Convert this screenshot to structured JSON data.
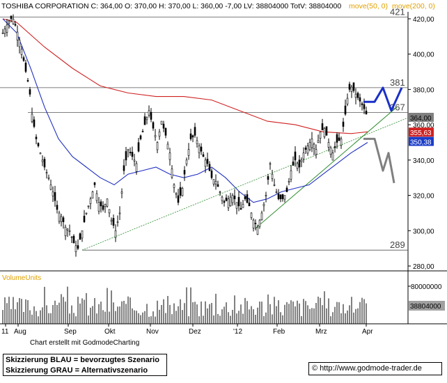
{
  "header": {
    "ticker_info": "TOSHIBA CORPORATION C: 364,00 O: 370,00 H: 370,00 L: 360,00 -7,00 LV: 38804000 TotV: 38804000",
    "ma50_label": "move(50, 0)",
    "ma200_label": "move(200, 0)"
  },
  "footer": {
    "credit": "Chart erstellt mit GodmodeCharting",
    "caption_blue": "Skizzierung BLAU = bevorzugtes Szenario",
    "caption_grey": "Skizzierung GRAU = Alternativszenario",
    "copyright_symbol": "©",
    "url": "http://www.godmode-trader.de"
  },
  "colors": {
    "ma50": "#2030c0",
    "ma200": "#d02020",
    "blue_scenario": "#1a30c8",
    "grey_scenario": "#808080",
    "trendline": "#2a8a2a",
    "price": "#000000",
    "last_price_badge": "#808080",
    "ma200_badge": "#d02020",
    "ma50_badge": "#1a3cc8"
  },
  "chart_data": {
    "type": "candlestick",
    "price_axis": {
      "ylim": [
        275,
        425
      ],
      "ticks": [
        "280,00",
        "300,00",
        "320,00",
        "340,00",
        "360,00",
        "380,00",
        "400,00",
        "420,00"
      ]
    },
    "x_axis": {
      "labels": [
        "11",
        "Aug",
        "Sep",
        "Okt",
        "Nov",
        "Dez",
        "'12",
        "Feb",
        "Mrz",
        "Apr"
      ]
    },
    "level_labels": [
      "421",
      "381",
      "367",
      "289"
    ],
    "levels": [
      421,
      381,
      367,
      289
    ],
    "badges": {
      "last": "364,00",
      "ma200": "355,63",
      "ma50": "350,38"
    },
    "volume": {
      "label": "VolumeUnits",
      "tick": "80000000",
      "last": "38804000"
    },
    "price_path": [
      [
        0,
        412
      ],
      [
        8,
        418
      ],
      [
        14,
        421
      ],
      [
        20,
        414
      ],
      [
        26,
        405
      ],
      [
        32,
        392
      ],
      [
        38,
        381
      ],
      [
        42,
        366
      ],
      [
        48,
        352
      ],
      [
        54,
        344
      ],
      [
        60,
        336
      ],
      [
        66,
        330
      ],
      [
        72,
        322
      ],
      [
        78,
        312
      ],
      [
        84,
        308
      ],
      [
        90,
        302
      ],
      [
        96,
        300
      ],
      [
        102,
        293
      ],
      [
        108,
        290
      ],
      [
        114,
        300
      ],
      [
        120,
        310
      ],
      [
        126,
        318
      ],
      [
        132,
        326
      ],
      [
        138,
        316
      ],
      [
        144,
        312
      ],
      [
        150,
        318
      ],
      [
        156,
        306
      ],
      [
        162,
        300
      ],
      [
        168,
        310
      ],
      [
        174,
        334
      ],
      [
        180,
        346
      ],
      [
        186,
        342
      ],
      [
        192,
        338
      ],
      [
        198,
        352
      ],
      [
        204,
        360
      ],
      [
        210,
        368
      ],
      [
        216,
        358
      ],
      [
        222,
        350
      ],
      [
        228,
        362
      ],
      [
        234,
        354
      ],
      [
        240,
        344
      ],
      [
        246,
        326
      ],
      [
        252,
        316
      ],
      [
        258,
        324
      ],
      [
        264,
        340
      ],
      [
        270,
        352
      ],
      [
        276,
        354
      ],
      [
        282,
        348
      ],
      [
        288,
        342
      ],
      [
        294,
        338
      ],
      [
        300,
        330
      ],
      [
        306,
        328
      ],
      [
        312,
        322
      ],
      [
        318,
        316
      ],
      [
        324,
        318
      ],
      [
        330,
        320
      ],
      [
        336,
        316
      ],
      [
        342,
        312
      ],
      [
        348,
        318
      ],
      [
        354,
        314
      ],
      [
        360,
        306
      ],
      [
        366,
        302
      ],
      [
        372,
        310
      ],
      [
        378,
        320
      ],
      [
        384,
        338
      ],
      [
        390,
        326
      ],
      [
        396,
        318
      ],
      [
        402,
        318
      ],
      [
        408,
        322
      ],
      [
        414,
        334
      ],
      [
        420,
        340
      ],
      [
        426,
        336
      ],
      [
        432,
        344
      ],
      [
        438,
        348
      ],
      [
        444,
        352
      ],
      [
        450,
        346
      ],
      [
        456,
        356
      ],
      [
        462,
        358
      ],
      [
        468,
        350
      ],
      [
        474,
        344
      ],
      [
        480,
        350
      ],
      [
        486,
        352
      ],
      [
        492,
        366
      ],
      [
        496,
        378
      ],
      [
        500,
        382
      ],
      [
        506,
        378
      ],
      [
        512,
        374
      ],
      [
        518,
        370
      ],
      [
        522,
        366
      ],
      [
        524,
        364
      ]
    ],
    "ma200_path": [
      [
        0,
        420
      ],
      [
        20,
        418
      ],
      [
        60,
        404
      ],
      [
        100,
        392
      ],
      [
        140,
        382
      ],
      [
        180,
        378
      ],
      [
        220,
        376
      ],
      [
        260,
        376
      ],
      [
        300,
        374
      ],
      [
        340,
        368
      ],
      [
        380,
        362
      ],
      [
        420,
        360
      ],
      [
        460,
        356
      ],
      [
        500,
        355
      ],
      [
        524,
        356
      ]
    ],
    "ma50_path": [
      [
        0,
        420
      ],
      [
        20,
        412
      ],
      [
        40,
        392
      ],
      [
        60,
        370
      ],
      [
        80,
        352
      ],
      [
        100,
        342
      ],
      [
        120,
        336
      ],
      [
        140,
        330
      ],
      [
        160,
        326
      ],
      [
        180,
        332
      ],
      [
        200,
        334
      ],
      [
        220,
        336
      ],
      [
        240,
        332
      ],
      [
        260,
        330
      ],
      [
        280,
        332
      ],
      [
        300,
        336
      ],
      [
        320,
        330
      ],
      [
        340,
        322
      ],
      [
        360,
        316
      ],
      [
        380,
        318
      ],
      [
        400,
        322
      ],
      [
        420,
        324
      ],
      [
        440,
        326
      ],
      [
        460,
        332
      ],
      [
        480,
        338
      ],
      [
        500,
        344
      ],
      [
        524,
        350
      ]
    ],
    "blue_scenario": [
      [
        522,
        373
      ],
      [
        538,
        373
      ],
      [
        550,
        381
      ],
      [
        562,
        368
      ],
      [
        577,
        381
      ]
    ],
    "grey_scenario": [
      [
        522,
        352
      ],
      [
        538,
        352
      ],
      [
        550,
        334
      ],
      [
        558,
        344
      ],
      [
        566,
        327
      ]
    ]
  }
}
